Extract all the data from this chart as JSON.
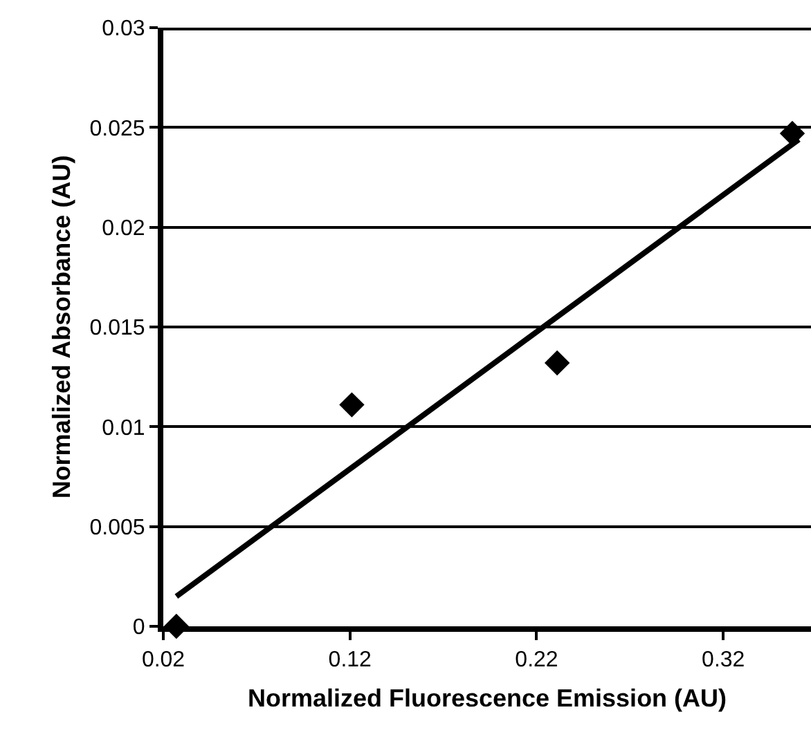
{
  "chart_data": {
    "type": "scatter",
    "xlabel": "Normalized Fluorescence Emission (AU)",
    "ylabel": "Normalized Absorbance (AU)",
    "xlim": [
      0.02,
      0.367
    ],
    "xticks": [
      0.02,
      0.12,
      0.22,
      0.32
    ],
    "ylim": [
      0,
      0.03
    ],
    "yticks": [
      0,
      0.005,
      0.01,
      0.015,
      0.02,
      0.025,
      0.03
    ],
    "grid": "y",
    "marker": "diamond",
    "series": [
      {
        "color": "#000000",
        "x": [
          0.027,
          0.121,
          0.231,
          0.357
        ],
        "values": [
          0,
          0.0111,
          0.0132,
          0.0247
        ]
      },
      {
        "type": "line",
        "color": "#000000",
        "marker": "none",
        "line_style": "solid",
        "x": [
          0.027,
          0.3605
        ],
        "values": [
          0.0015,
          0.0244
        ]
      }
    ]
  }
}
